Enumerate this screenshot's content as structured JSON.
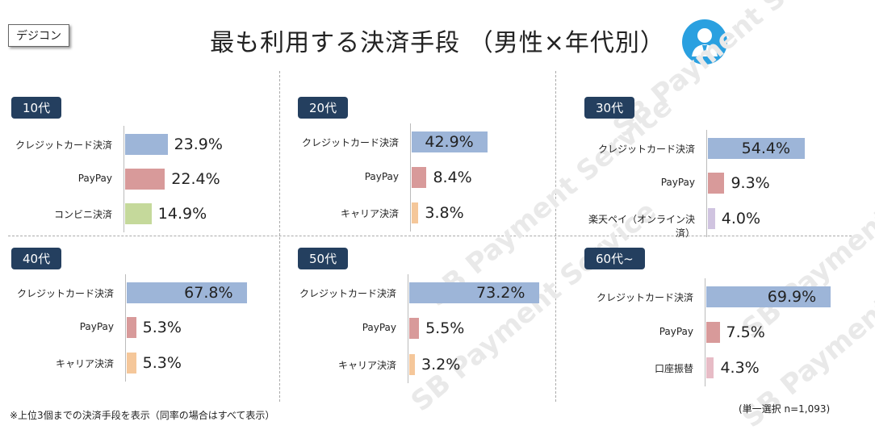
{
  "tag": "デジコン",
  "title": "最も利用する決済手段 （男性×年代別）",
  "icons": {
    "user": "user-icon"
  },
  "watermark_text": "SB Payment Service",
  "footnote": "※上位3個までの決済手段を表示（同率の場合はすべて表示）",
  "sample_note": "(単一選択 n=1,093)",
  "colors": {
    "credit": "#9db5d8",
    "paypay": "#d89a9a",
    "conveni": "#c5d99b",
    "career": "#f5c79a",
    "rakuten": "#d0c4e0",
    "koza": "#e7bcc6",
    "age_badge": "#243f5f"
  },
  "chart_data": [
    {
      "type": "bar",
      "title": "10代",
      "categories": [
        "クレジットカード決済",
        "PayPay",
        "コンビニ決済"
      ],
      "values": [
        23.9,
        22.4,
        14.9
      ],
      "unit": "%"
    },
    {
      "type": "bar",
      "title": "20代",
      "categories": [
        "クレジットカード決済",
        "PayPay",
        "キャリア決済"
      ],
      "values": [
        42.9,
        8.4,
        3.8
      ],
      "unit": "%"
    },
    {
      "type": "bar",
      "title": "30代",
      "categories": [
        "クレジットカード決済",
        "PayPay",
        "楽天ペイ（オンライン決済）"
      ],
      "values": [
        54.4,
        9.3,
        4.0
      ],
      "unit": "%"
    },
    {
      "type": "bar",
      "title": "40代",
      "categories": [
        "クレジットカード決済",
        "PayPay",
        "キャリア決済"
      ],
      "values": [
        67.8,
        5.3,
        5.3
      ],
      "unit": "%"
    },
    {
      "type": "bar",
      "title": "50代",
      "categories": [
        "クレジットカード決済",
        "PayPay",
        "キャリア決済"
      ],
      "values": [
        73.2,
        5.5,
        3.2
      ],
      "unit": "%"
    },
    {
      "type": "bar",
      "title": "60代~",
      "categories": [
        "クレジットカード決済",
        "PayPay",
        "口座振替"
      ],
      "values": [
        69.9,
        7.5,
        4.3
      ],
      "unit": "%"
    }
  ]
}
